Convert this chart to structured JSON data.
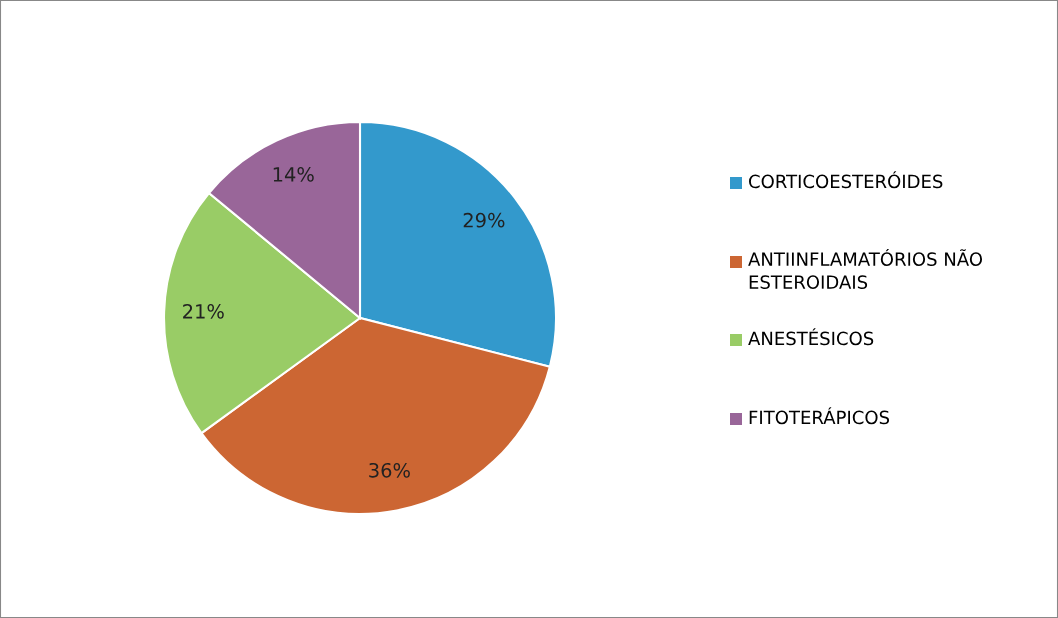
{
  "chart_data": {
    "type": "pie",
    "categories": [
      "CORTICOESTERÓIDES",
      "ANTIINFLAMATÓRIOS NÃO ESTEROIDAIS",
      "ANESTÉSICOS",
      "FITOTERÁPICOS"
    ],
    "values": [
      29,
      36,
      21,
      14
    ],
    "colors": [
      "#3399cc",
      "#cc6633",
      "#99cc66",
      "#996699"
    ],
    "value_labels": [
      "29%",
      "36%",
      "21%",
      "14%"
    ],
    "legend": "right"
  }
}
